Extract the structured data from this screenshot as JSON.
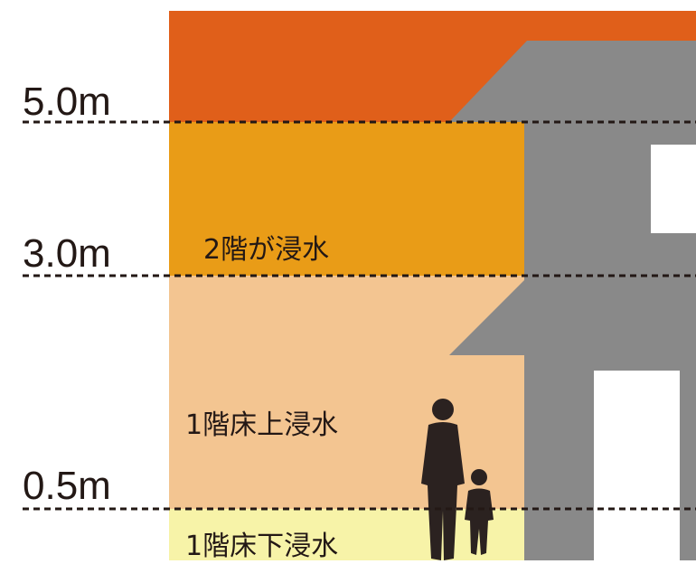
{
  "levels": [
    "5.0m",
    "3.0m",
    "0.5m"
  ],
  "zones": [
    "2階が浸水",
    "1階床上浸水",
    "1階床下浸水"
  ]
}
